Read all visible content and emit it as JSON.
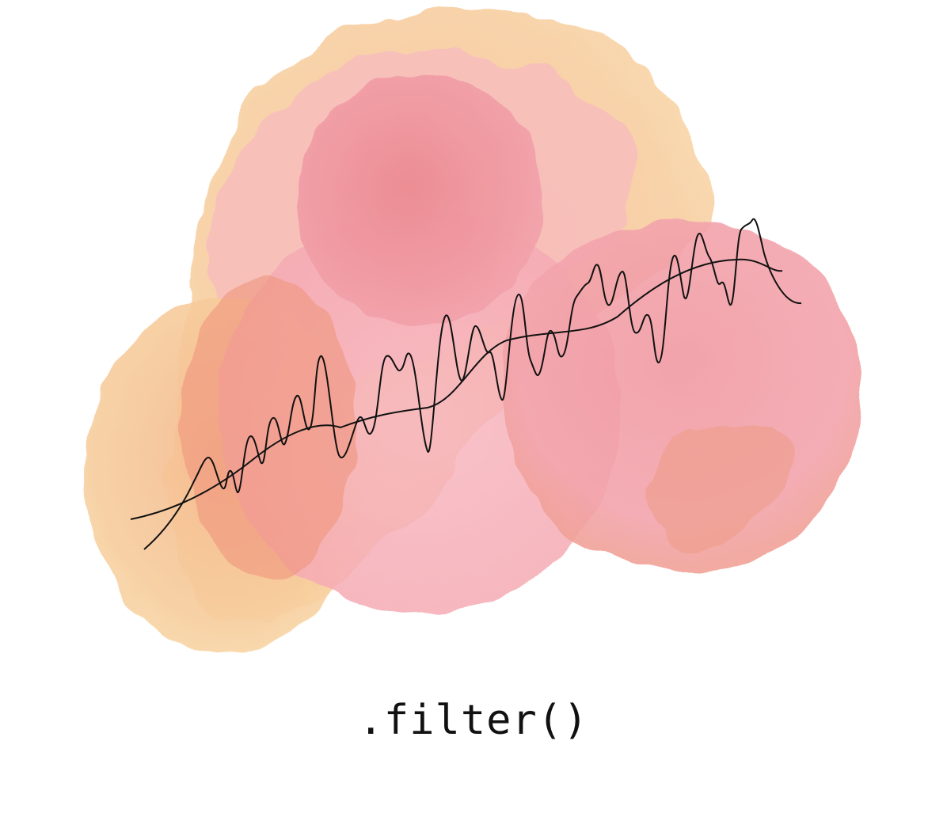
{
  "caption": ".filter()",
  "colors": {
    "background": "#ffffff",
    "peach": "#f6c28e",
    "orange_wash": "#f2a27c",
    "pink_wash": "#f7b4bb",
    "rose": "#ee8a8f",
    "line": "#111111"
  }
}
